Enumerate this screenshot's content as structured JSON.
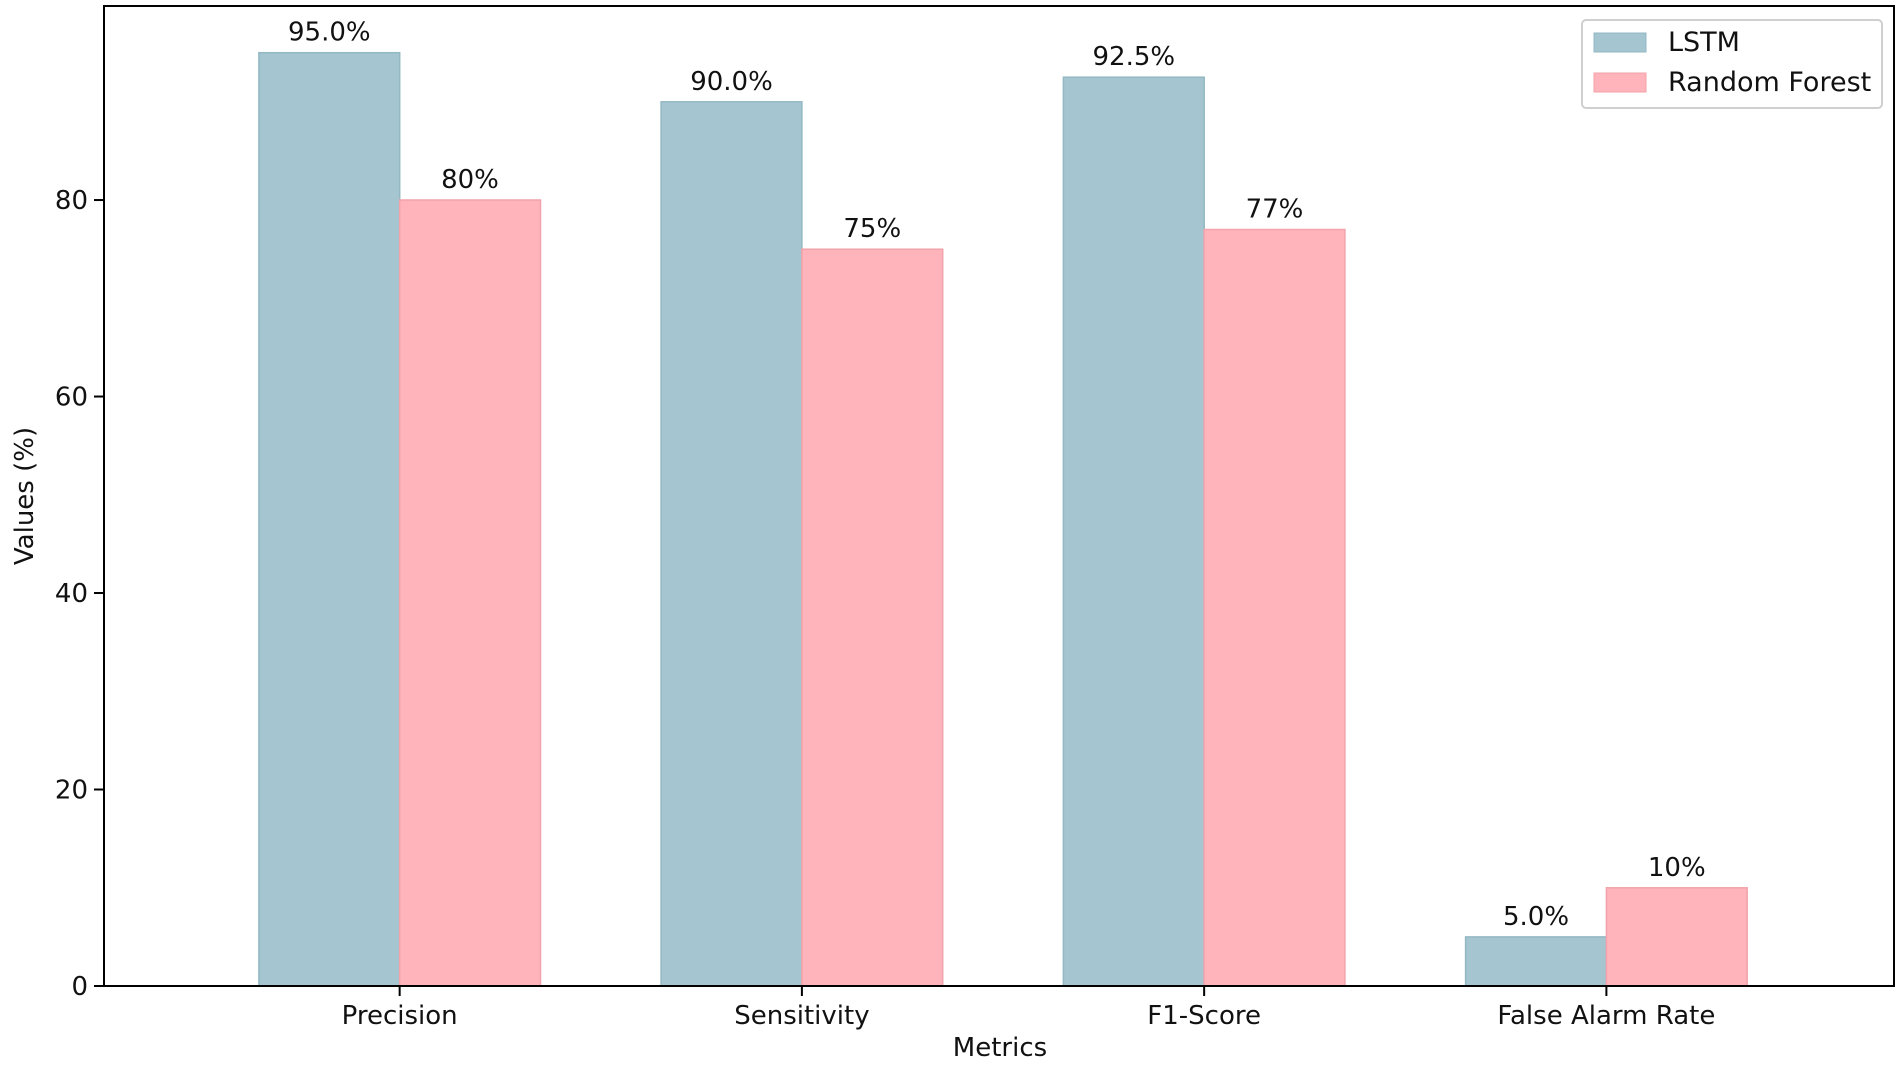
{
  "chart_data": {
    "type": "bar",
    "title": "",
    "xlabel": "Metrics",
    "ylabel": "Values (%)",
    "categories": [
      "Precision",
      "Sensitivity",
      "F1-Score",
      "False Alarm Rate"
    ],
    "series": [
      {
        "name": "LSTM",
        "color": "#a5c5d0",
        "edge_color": "#93b8c4",
        "values": [
          95.0,
          90.0,
          92.5,
          5.0
        ],
        "labels": [
          "95.0%",
          "90.0%",
          "92.5%",
          "5.0%"
        ]
      },
      {
        "name": "Random Forest",
        "color": "#ffb3ba",
        "edge_color": "#f2a3ab",
        "values": [
          80,
          75,
          77,
          10
        ],
        "labels": [
          "80%",
          "75%",
          "77%",
          "10%"
        ]
      }
    ],
    "ylim": [
      0,
      99.75
    ],
    "yticks": [
      0,
      20,
      40,
      60,
      80
    ],
    "grid": false,
    "legend_position": "top-right"
  }
}
